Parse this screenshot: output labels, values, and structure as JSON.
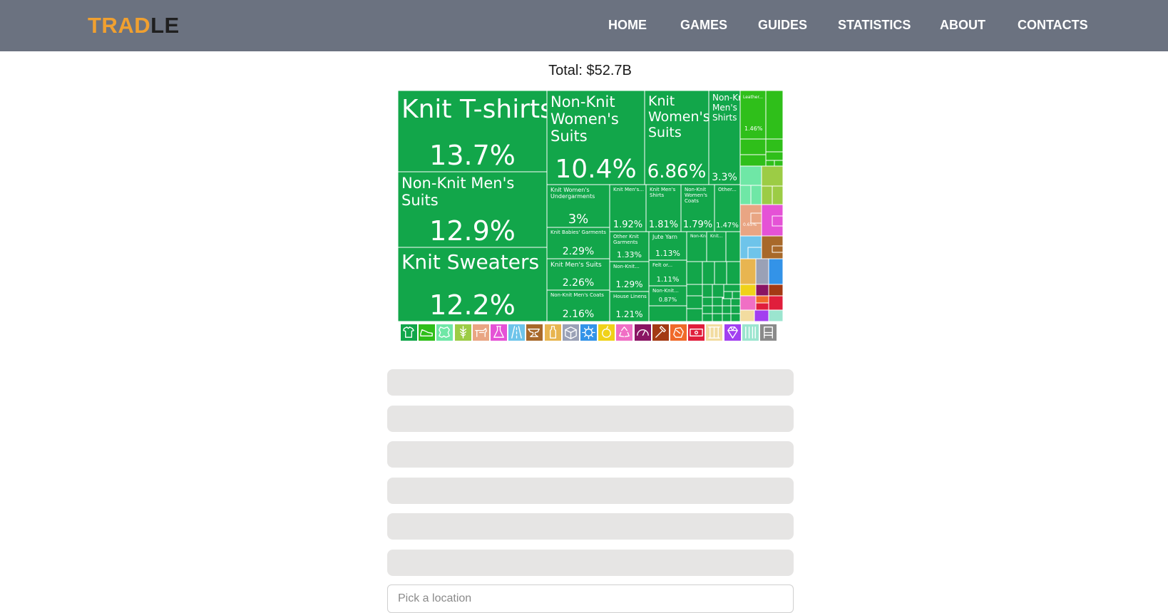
{
  "navbar": {
    "logo_part1": "TRAD",
    "logo_part2": "LE",
    "items": [
      "HOME",
      "GAMES",
      "GUIDES",
      "STATISTICS",
      "ABOUT",
      "CONTACTS"
    ]
  },
  "total": "Total: $52.7B",
  "treemap": {
    "labeled_tiles": [
      {
        "label": "Knit T-shirts",
        "percent": "13.7%",
        "color": "#12a64a"
      },
      {
        "label": "Non-Knit Men's Suits",
        "percent": "12.9%",
        "color": "#12a64a"
      },
      {
        "label": "Knit Sweaters",
        "percent": "12.2%",
        "color": "#12a64a"
      },
      {
        "label": "Non-Knit Women's Suits",
        "percent": "10.4%",
        "color": "#12a64a"
      },
      {
        "label": "Knit Women's Suits",
        "percent": "6.86%",
        "color": "#12a64a"
      },
      {
        "label": "Non-Knit Men's Shirts",
        "percent": "3.3%",
        "color": "#12a64a"
      },
      {
        "label": "Knit Women's Undergarments",
        "percent": "3%",
        "color": "#12a64a"
      },
      {
        "label": "Knit Men's...",
        "percent": "1.92%",
        "color": "#12a64a"
      },
      {
        "label": "Knit Men's Shirts",
        "percent": "1.81%",
        "color": "#12a64a"
      },
      {
        "label": "Non-Knit Women's Coats",
        "percent": "1.79%",
        "color": "#12a64a"
      },
      {
        "label": "Other...",
        "percent": "1.47%",
        "color": "#12a64a"
      },
      {
        "label": "Knit Babies' Garments",
        "percent": "2.29%",
        "color": "#12a64a"
      },
      {
        "label": "Other Knit Garments",
        "percent": "1.33%",
        "color": "#12a64a"
      },
      {
        "label": "Jute Yarn",
        "percent": "1.13%",
        "color": "#12a64a"
      },
      {
        "label": "Non-Knit...",
        "percent": "",
        "color": "#12a64a"
      },
      {
        "label": "Knit...",
        "percent": "",
        "color": "#12a64a"
      },
      {
        "label": "Knit Men's Suits",
        "percent": "2.26%",
        "color": "#12a64a"
      },
      {
        "label": "Non-Knit...",
        "percent": "1.29%",
        "color": "#12a64a"
      },
      {
        "label": "Felt or...",
        "percent": "1.11%",
        "color": "#12a64a"
      },
      {
        "label": "Non-Knit Men's Coats",
        "percent": "2.16%",
        "color": "#12a64a"
      },
      {
        "label": "House Linens",
        "percent": "1.21%",
        "color": "#12a64a"
      },
      {
        "label": "Non-Knit...",
        "percent": "0.87%",
        "color": "#12a64a"
      },
      {
        "label": "Leather...",
        "percent": "1.46%",
        "color": "#2fbf1a"
      },
      {
        "label": "",
        "percent": "0.65%",
        "color": "#e8a882"
      }
    ]
  },
  "categories": [
    {
      "icon": "tshirt-icon",
      "color": "#12a64a"
    },
    {
      "icon": "shoe-icon",
      "color": "#2fbf1a"
    },
    {
      "icon": "animal-hide-icon",
      "color": "#6fe7a6"
    },
    {
      "icon": "wheat-icon",
      "color": "#9ccc45"
    },
    {
      "icon": "animal-icon",
      "color": "#e9a583"
    },
    {
      "icon": "flask-icon",
      "color": "#e552d6"
    },
    {
      "icon": "road-icon",
      "color": "#6ec4ea"
    },
    {
      "icon": "anvil-icon",
      "color": "#a8692a"
    },
    {
      "icon": "bottle-icon",
      "color": "#e8b550"
    },
    {
      "icon": "box-icon",
      "color": "#9aa1b6"
    },
    {
      "icon": "gear-icon",
      "color": "#3393e8"
    },
    {
      "icon": "fruit-icon",
      "color": "#f0d219"
    },
    {
      "icon": "recycle-icon",
      "color": "#f06fc5"
    },
    {
      "icon": "gauge-icon",
      "color": "#8a1563"
    },
    {
      "icon": "hammer-icon",
      "color": "#a33a14"
    },
    {
      "icon": "stone-icon",
      "color": "#f06a2a"
    },
    {
      "icon": "money-icon",
      "color": "#e01e3c"
    },
    {
      "icon": "wood-icon",
      "color": "#f2dca0"
    },
    {
      "icon": "diamond-icon",
      "color": "#a23ff0"
    },
    {
      "icon": "paper-icon",
      "color": "#9be5cf"
    },
    {
      "icon": "chair-icon",
      "color": "#8a8a8a"
    }
  ],
  "guess_slots": 6,
  "location_input": {
    "placeholder": "Pick a location"
  }
}
